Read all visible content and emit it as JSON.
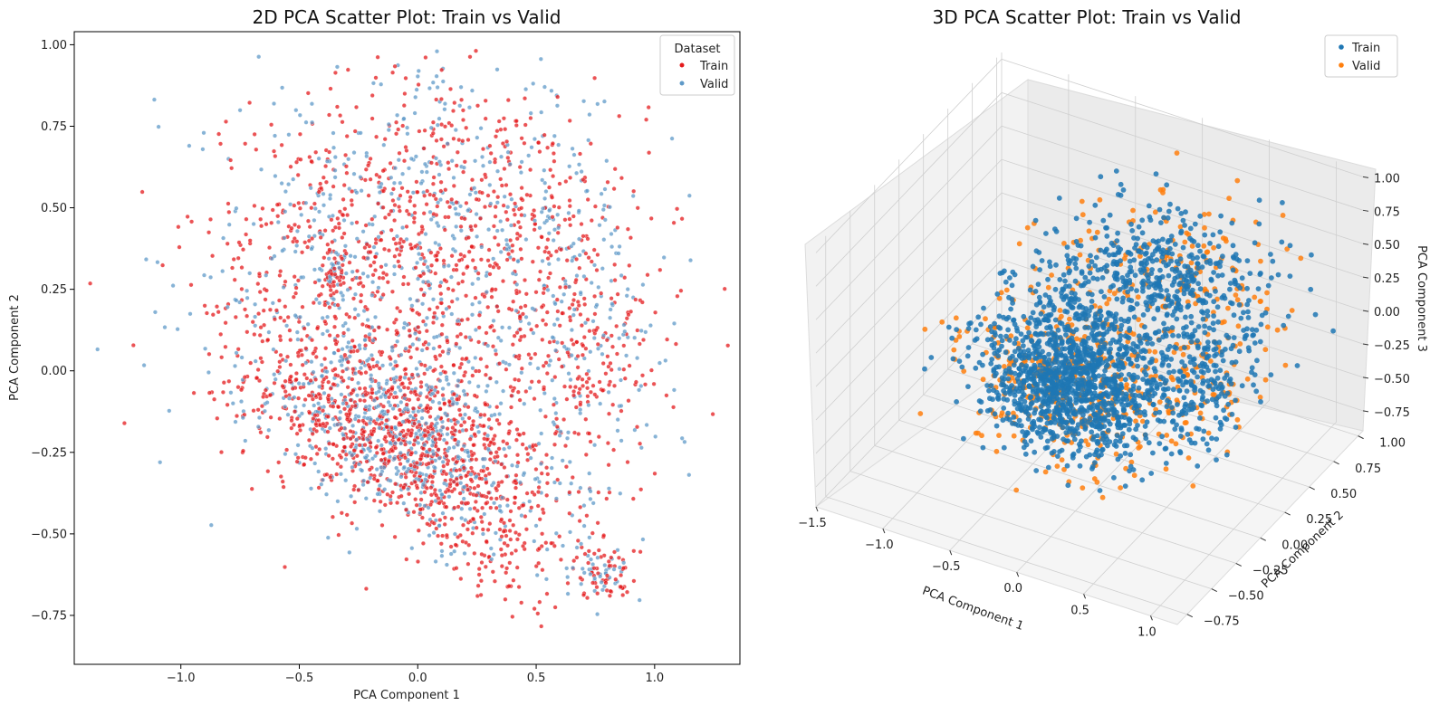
{
  "chart_data": [
    {
      "type": "scatter",
      "title": "2D PCA Scatter Plot: Train vs Valid",
      "xlabel": "PCA Component 1",
      "ylabel": "PCA Component 2",
      "xlim": [
        -1.45,
        1.36
      ],
      "ylim": [
        -0.9,
        1.04
      ],
      "x_ticks": [
        -1.0,
        -0.5,
        0.0,
        0.5,
        1.0
      ],
      "x_tick_labels": [
        "−1.0",
        "−0.5",
        "0.0",
        "0.5",
        "1.0"
      ],
      "y_ticks": [
        -0.75,
        -0.5,
        -0.25,
        0.0,
        0.25,
        0.5,
        0.75,
        1.0
      ],
      "y_tick_labels": [
        "−0.75",
        "−0.50",
        "−0.25",
        "0.00",
        "0.25",
        "0.50",
        "0.75",
        "1.00"
      ],
      "grid": false,
      "legend": {
        "title": "Dataset",
        "placement": "top-right",
        "entries": [
          "Train",
          "Valid"
        ]
      },
      "series": [
        {
          "name": "Train",
          "color": "#e41a1c",
          "clusters": [
            {
              "cx": -0.05,
              "cy": -0.22,
              "sx": 0.33,
              "sy": 0.13,
              "tilt": -0.32,
              "n": 900
            },
            {
              "cx": 0.15,
              "cy": 0.5,
              "sx": 0.42,
              "sy": 0.2,
              "tilt": 0.0,
              "n": 500
            },
            {
              "cx": -0.35,
              "cy": 0.3,
              "sx": 0.3,
              "sy": 0.25,
              "tilt": 0.0,
              "n": 220
            },
            {
              "cx": 0.72,
              "cy": 0.1,
              "sx": 0.13,
              "sy": 0.2,
              "tilt": 0.0,
              "n": 140
            },
            {
              "cx": 0.78,
              "cy": -0.62,
              "sx": 0.06,
              "sy": 0.04,
              "tilt": 0.0,
              "n": 55
            },
            {
              "cx": 0.2,
              "cy": 0.02,
              "sx": 0.45,
              "sy": 0.2,
              "tilt": 0.0,
              "n": 300
            },
            {
              "cx": -0.35,
              "cy": 0.3,
              "sx": 0.025,
              "sy": 0.04,
              "tilt": 0.0,
              "n": 35
            },
            {
              "cx": 0.35,
              "cy": -0.55,
              "sx": 0.15,
              "sy": 0.09,
              "tilt": 0.0,
              "n": 70
            }
          ]
        },
        {
          "name": "Valid",
          "color": "#5f9ac8",
          "clusters": [
            {
              "cx": -0.05,
              "cy": -0.22,
              "sx": 0.33,
              "sy": 0.13,
              "tilt": -0.32,
              "n": 560
            },
            {
              "cx": 0.15,
              "cy": 0.5,
              "sx": 0.42,
              "sy": 0.2,
              "tilt": 0.0,
              "n": 330
            },
            {
              "cx": -0.35,
              "cy": 0.3,
              "sx": 0.3,
              "sy": 0.25,
              "tilt": 0.0,
              "n": 150
            },
            {
              "cx": 0.72,
              "cy": 0.1,
              "sx": 0.13,
              "sy": 0.2,
              "tilt": 0.0,
              "n": 90
            },
            {
              "cx": 0.78,
              "cy": -0.62,
              "sx": 0.06,
              "sy": 0.04,
              "tilt": 0.0,
              "n": 35
            },
            {
              "cx": -0.35,
              "cy": 0.3,
              "sx": 0.025,
              "sy": 0.04,
              "tilt": 0.0,
              "n": 25
            },
            {
              "cx": 0.2,
              "cy": 0.02,
              "sx": 0.45,
              "sy": 0.2,
              "tilt": 0.0,
              "n": 180
            }
          ]
        }
      ]
    },
    {
      "type": "scatter",
      "title": "3D PCA Scatter Plot:  Train vs Valid",
      "xlabel": "PCA Component 1",
      "ylabel": "PCA Component 2",
      "zlabel": "PCA Component 3",
      "xlim": [
        -1.5,
        1.2
      ],
      "ylim": [
        -0.85,
        1.05
      ],
      "zlim": [
        -0.9,
        1.05
      ],
      "x_ticks": [
        -1.5,
        -1.0,
        -0.5,
        0.0,
        0.5,
        1.0
      ],
      "x_tick_labels": [
        "−1.5",
        "−1.0",
        "−0.5",
        "0.0",
        "0.5",
        "1.0"
      ],
      "y_ticks": [
        -0.75,
        -0.5,
        -0.25,
        0.0,
        0.25,
        0.5,
        0.75,
        1.0
      ],
      "y_tick_labels": [
        "−0.75",
        "−0.50",
        "−0.25",
        "0.00",
        "0.25",
        "0.50",
        "0.75",
        "1.00"
      ],
      "z_ticks": [
        -0.75,
        -0.5,
        -0.25,
        0.0,
        0.25,
        0.5,
        0.75,
        1.0
      ],
      "z_tick_labels": [
        "−0.75",
        "−0.50",
        "−0.25",
        "0.00",
        "0.25",
        "0.50",
        "0.75",
        "1.00"
      ],
      "grid": true,
      "legend": {
        "placement": "top-right",
        "entries": [
          "Train",
          "Valid"
        ]
      },
      "series": [
        {
          "name": "Train",
          "color": "#1f77b4",
          "clusters": [
            {
              "cx": -0.05,
              "cy": -0.2,
              "cz": 0.0,
              "sx": 0.32,
              "sy": 0.16,
              "sz": 0.22,
              "n": 1100
            },
            {
              "cx": 0.15,
              "cy": 0.5,
              "cz": 0.3,
              "sx": 0.38,
              "sy": 0.2,
              "sz": 0.25,
              "n": 500
            },
            {
              "cx": -0.35,
              "cy": 0.3,
              "cz": -0.1,
              "sx": 0.28,
              "sy": 0.22,
              "sz": 0.25,
              "n": 250
            },
            {
              "cx": 0.7,
              "cy": 0.1,
              "cz": 0.0,
              "sx": 0.12,
              "sy": 0.18,
              "sz": 0.2,
              "n": 150
            }
          ]
        },
        {
          "name": "Valid",
          "color": "#ff7f0e",
          "clusters": [
            {
              "cx": -0.05,
              "cy": -0.2,
              "cz": 0.0,
              "sx": 0.36,
              "sy": 0.2,
              "sz": 0.26,
              "n": 380
            },
            {
              "cx": 0.15,
              "cy": 0.5,
              "cz": 0.3,
              "sx": 0.4,
              "sy": 0.22,
              "sz": 0.27,
              "n": 180
            },
            {
              "cx": 0.7,
              "cy": 0.1,
              "cz": 0.0,
              "sx": 0.14,
              "sy": 0.2,
              "sz": 0.22,
              "n": 60
            }
          ]
        }
      ]
    }
  ]
}
